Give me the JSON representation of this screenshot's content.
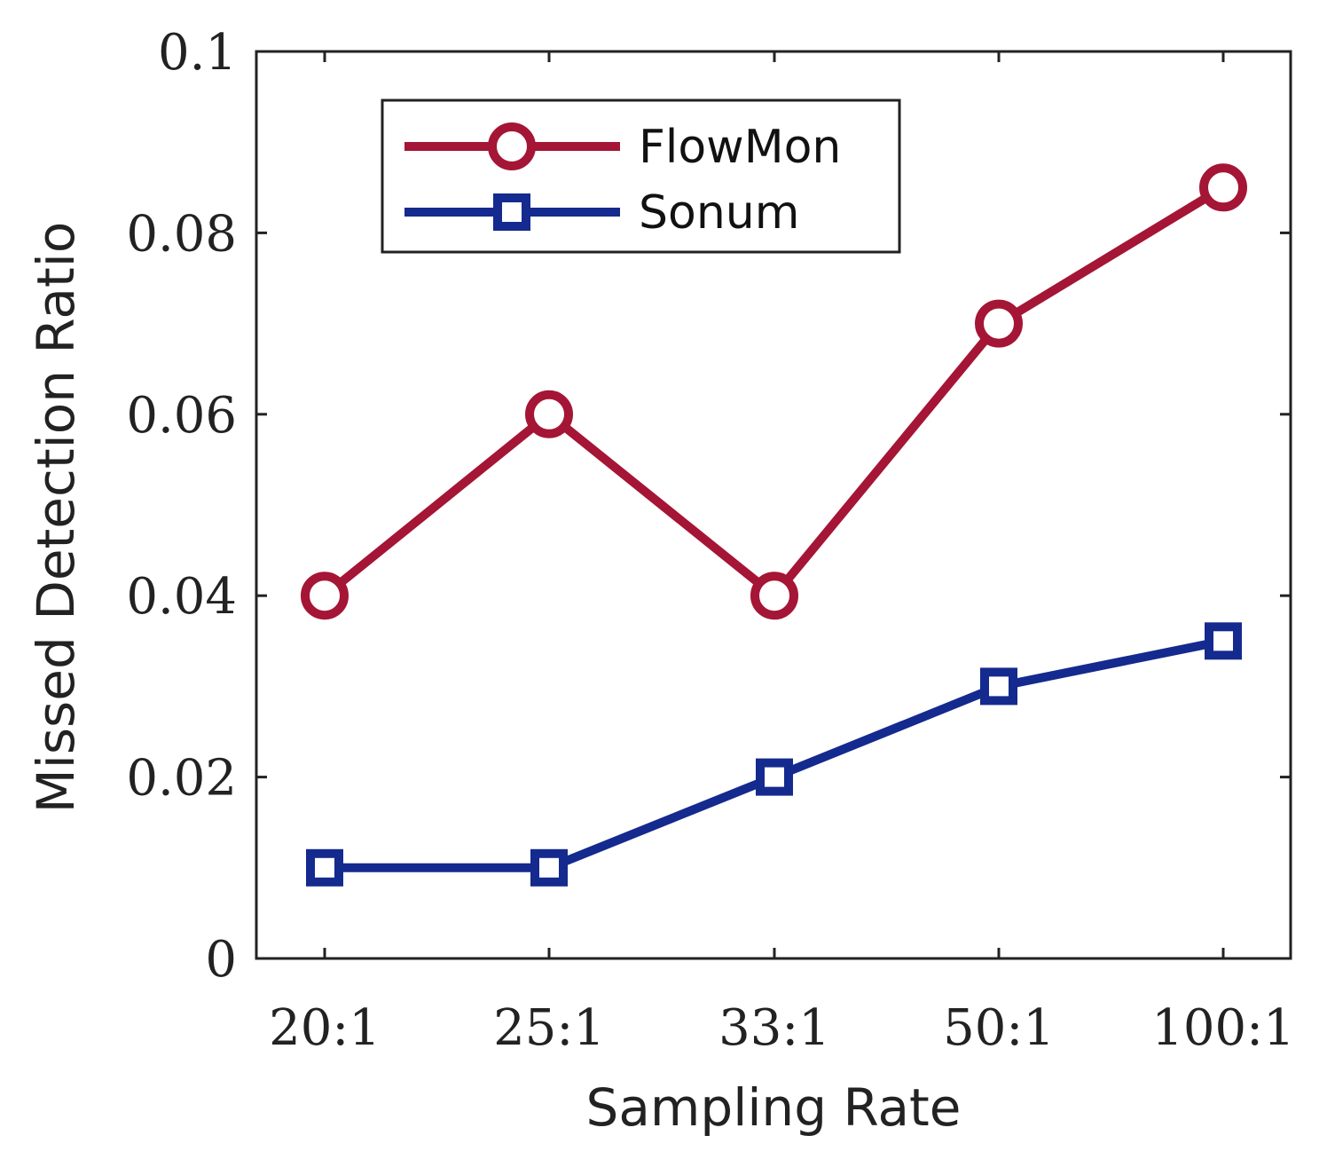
{
  "chart_data": {
    "type": "line",
    "title": "",
    "xlabel": "Sampling Rate",
    "ylabel": "Missed Detection Ratio",
    "categories": [
      "20:1",
      "25:1",
      "33:1",
      "50:1",
      "100:1"
    ],
    "ylim": [
      0,
      0.1
    ],
    "yticks": [
      0,
      0.02,
      0.04,
      0.06,
      0.08,
      0.1
    ],
    "ytick_labels": [
      "0",
      "0.02",
      "0.04",
      "0.06",
      "0.08",
      "0.1"
    ],
    "grid": false,
    "legend_position": "top-left",
    "series": [
      {
        "name": "FlowMon",
        "marker": "circle",
        "color": "#A51535",
        "values": [
          0.04,
          0.06,
          0.04,
          0.07,
          0.085
        ]
      },
      {
        "name": "Sonum",
        "marker": "square",
        "color": "#142A8E",
        "values": [
          0.01,
          0.01,
          0.02,
          0.03,
          0.035
        ]
      }
    ]
  }
}
